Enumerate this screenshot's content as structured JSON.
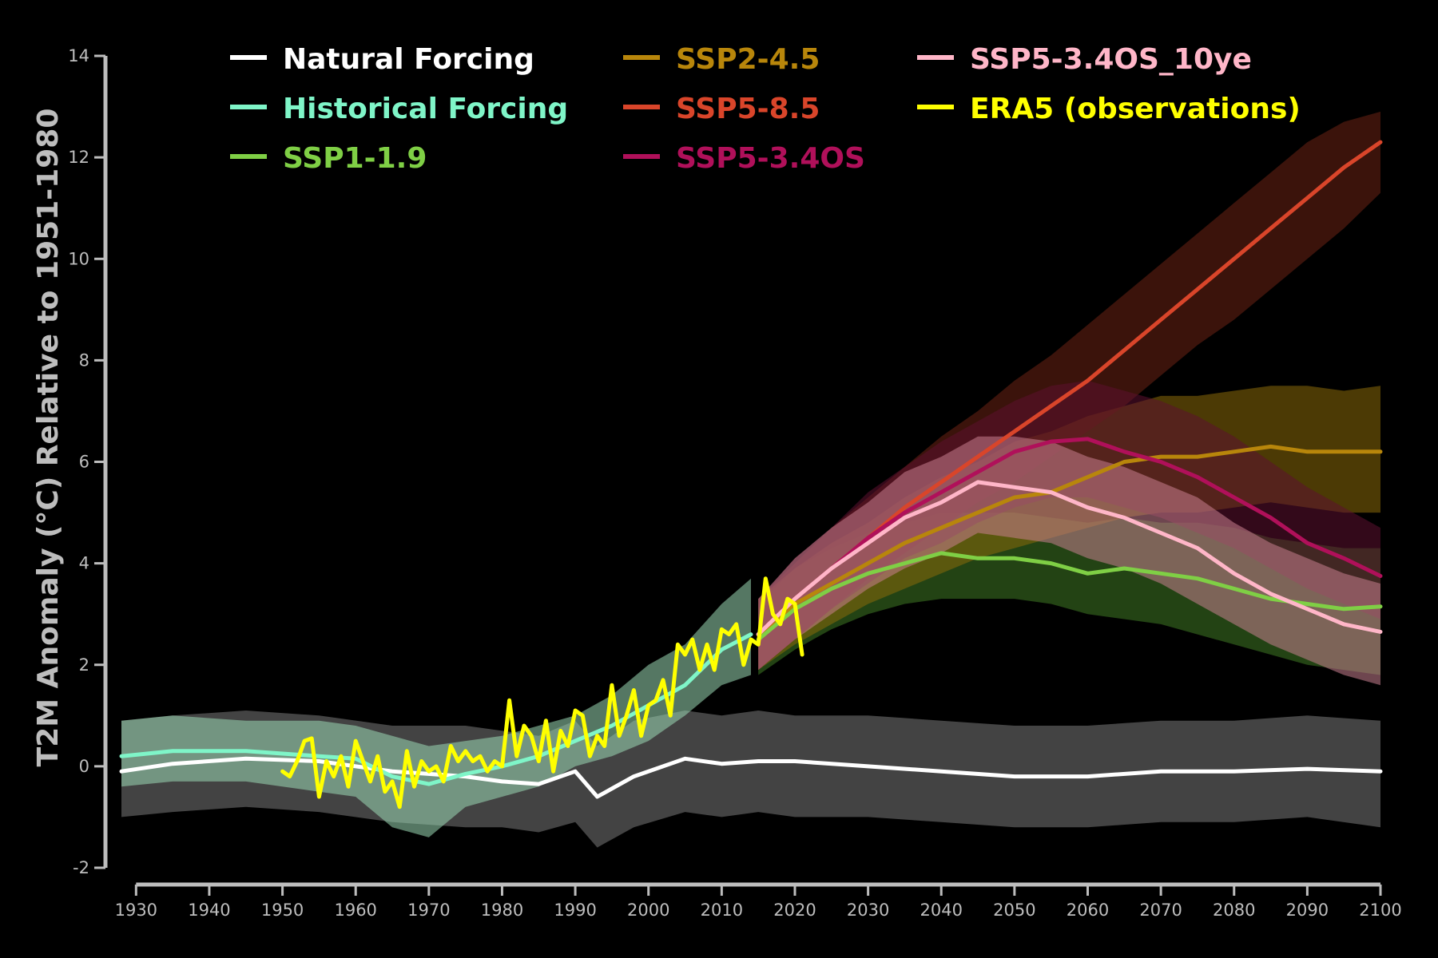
{
  "chart_data": {
    "type": "line",
    "title": "",
    "ylabel": "T2M Anomaly (°C) Relative to 1951-1980",
    "xlabel": "",
    "xlim": [
      1928,
      2100
    ],
    "ylim": [
      -2,
      14
    ],
    "xticks": [
      1930,
      1940,
      1950,
      1960,
      1970,
      1980,
      1990,
      2000,
      2010,
      2020,
      2030,
      2040,
      2050,
      2060,
      2070,
      2080,
      2090,
      2100
    ],
    "yticks": [
      -2,
      0,
      2,
      4,
      6,
      8,
      10,
      12,
      14
    ],
    "grid": false,
    "legend_position": "top",
    "series": [
      {
        "name": "Natural Forcing",
        "color": "#ffffff",
        "band_color": "#7a7a7a",
        "x": [
          1928,
          1935,
          1945,
          1955,
          1965,
          1975,
          1980,
          1985,
          1990,
          1993,
          1998,
          2005,
          2010,
          2015,
          2020,
          2030,
          2040,
          2050,
          2060,
          2070,
          2080,
          2090,
          2100
        ],
        "y": [
          -0.1,
          0.05,
          0.15,
          0.1,
          -0.1,
          -0.2,
          -0.3,
          -0.35,
          -0.1,
          -0.6,
          -0.2,
          0.15,
          0.05,
          0.1,
          0.1,
          0.0,
          -0.1,
          -0.2,
          -0.2,
          -0.1,
          -0.1,
          -0.05,
          -0.1
        ],
        "lower": [
          -1.0,
          -0.9,
          -0.8,
          -0.9,
          -1.1,
          -1.2,
          -1.2,
          -1.3,
          -1.1,
          -1.6,
          -1.2,
          -0.9,
          -1.0,
          -0.9,
          -1.0,
          -1.0,
          -1.1,
          -1.2,
          -1.2,
          -1.1,
          -1.1,
          -1.0,
          -1.2
        ],
        "upper": [
          0.9,
          1.0,
          1.1,
          1.0,
          0.8,
          0.8,
          0.7,
          0.6,
          0.9,
          0.4,
          0.9,
          1.1,
          1.0,
          1.1,
          1.0,
          1.0,
          0.9,
          0.8,
          0.8,
          0.9,
          0.9,
          1.0,
          0.9
        ]
      },
      {
        "name": "Historical Forcing",
        "color": "#7ff5c8",
        "band_color": "#9bd9b5",
        "x": [
          1928,
          1935,
          1945,
          1955,
          1960,
          1965,
          1970,
          1975,
          1980,
          1985,
          1990,
          1995,
          2000,
          2005,
          2010,
          2014
        ],
        "y": [
          0.2,
          0.3,
          0.3,
          0.2,
          0.15,
          -0.2,
          -0.35,
          -0.15,
          0.0,
          0.2,
          0.5,
          0.8,
          1.2,
          1.6,
          2.3,
          2.6
        ],
        "lower": [
          -0.4,
          -0.3,
          -0.3,
          -0.5,
          -0.6,
          -1.2,
          -1.4,
          -0.8,
          -0.6,
          -0.4,
          0.0,
          0.2,
          0.5,
          1.0,
          1.6,
          1.8
        ],
        "upper": [
          0.9,
          1.0,
          0.9,
          0.9,
          0.8,
          0.6,
          0.4,
          0.5,
          0.6,
          0.8,
          1.0,
          1.4,
          2.0,
          2.4,
          3.2,
          3.7
        ]
      },
      {
        "name": "SSP1-1.9",
        "color": "#7fcf45",
        "band_color": "#3f7a25",
        "x": [
          2015,
          2020,
          2025,
          2030,
          2035,
          2040,
          2045,
          2050,
          2055,
          2060,
          2065,
          2070,
          2075,
          2080,
          2085,
          2090,
          2095,
          2100
        ],
        "y": [
          2.5,
          3.1,
          3.5,
          3.8,
          4.0,
          4.2,
          4.1,
          4.1,
          4.0,
          3.8,
          3.9,
          3.8,
          3.7,
          3.5,
          3.3,
          3.2,
          3.1,
          3.15
        ],
        "lower": [
          1.8,
          2.3,
          2.7,
          3.0,
          3.2,
          3.3,
          3.3,
          3.3,
          3.2,
          3.0,
          2.9,
          2.8,
          2.6,
          2.4,
          2.2,
          2.0,
          1.9,
          1.8
        ],
        "upper": [
          3.2,
          3.9,
          4.3,
          4.6,
          4.8,
          5.0,
          5.0,
          5.0,
          4.9,
          4.8,
          4.9,
          4.8,
          4.8,
          4.7,
          4.5,
          4.4,
          4.3,
          4.3
        ]
      },
      {
        "name": "SSP2-4.5",
        "color": "#b8860b",
        "band_color": "#8a6a0a",
        "x": [
          2015,
          2020,
          2025,
          2030,
          2035,
          2040,
          2045,
          2050,
          2055,
          2060,
          2065,
          2070,
          2075,
          2080,
          2085,
          2090,
          2095,
          2100
        ],
        "y": [
          2.6,
          3.2,
          3.6,
          4.0,
          4.4,
          4.7,
          5.0,
          5.3,
          5.4,
          5.7,
          6.0,
          6.1,
          6.1,
          6.2,
          6.3,
          6.2,
          6.2,
          6.2
        ],
        "lower": [
          1.9,
          2.4,
          2.8,
          3.2,
          3.5,
          3.8,
          4.1,
          4.3,
          4.5,
          4.7,
          4.9,
          5.0,
          5.0,
          5.1,
          5.2,
          5.1,
          5.0,
          5.0
        ],
        "upper": [
          3.3,
          3.9,
          4.4,
          4.8,
          5.3,
          5.7,
          6.0,
          6.4,
          6.6,
          6.9,
          7.1,
          7.3,
          7.3,
          7.4,
          7.5,
          7.5,
          7.4,
          7.5
        ]
      },
      {
        "name": "SSP5-8.5",
        "color": "#d9452a",
        "band_color": "#6b2214",
        "x": [
          2015,
          2020,
          2025,
          2030,
          2035,
          2040,
          2045,
          2050,
          2055,
          2060,
          2065,
          2070,
          2075,
          2080,
          2085,
          2090,
          2095,
          2100
        ],
        "y": [
          2.6,
          3.3,
          3.9,
          4.5,
          5.1,
          5.6,
          6.1,
          6.6,
          7.1,
          7.6,
          8.2,
          8.8,
          9.4,
          10.0,
          10.6,
          11.2,
          11.8,
          12.3
        ],
        "lower": [
          1.9,
          2.5,
          3.1,
          3.7,
          4.2,
          4.7,
          5.2,
          5.6,
          6.1,
          6.6,
          7.1,
          7.7,
          8.3,
          8.8,
          9.4,
          10.0,
          10.6,
          11.3
        ],
        "upper": [
          3.3,
          4.0,
          4.7,
          5.3,
          5.9,
          6.5,
          7.0,
          7.6,
          8.1,
          8.7,
          9.3,
          9.9,
          10.5,
          11.1,
          11.7,
          12.3,
          12.7,
          12.9
        ]
      },
      {
        "name": "SSP5-3.4OS",
        "color": "#b0105a",
        "band_color": "#5c1030",
        "x": [
          2015,
          2020,
          2025,
          2030,
          2035,
          2040,
          2045,
          2050,
          2055,
          2060,
          2065,
          2070,
          2075,
          2080,
          2085,
          2090,
          2095,
          2100
        ],
        "y": [
          2.6,
          3.3,
          3.9,
          4.5,
          5.0,
          5.4,
          5.8,
          6.2,
          6.4,
          6.45,
          6.2,
          6.0,
          5.7,
          5.3,
          4.9,
          4.4,
          4.1,
          3.75
        ],
        "lower": [
          1.9,
          2.5,
          3.1,
          3.6,
          4.1,
          4.4,
          4.8,
          5.1,
          5.3,
          5.3,
          5.1,
          4.9,
          4.6,
          4.3,
          3.9,
          3.5,
          3.2,
          2.9
        ],
        "upper": [
          3.3,
          4.1,
          4.7,
          5.4,
          5.9,
          6.4,
          6.8,
          7.2,
          7.5,
          7.6,
          7.4,
          7.2,
          6.9,
          6.5,
          6.0,
          5.5,
          5.1,
          4.7
        ]
      },
      {
        "name": "SSP5-3.4OS_10ye",
        "color": "#ffb6c8",
        "band_color": "#c9808f",
        "x": [
          2015,
          2020,
          2025,
          2030,
          2035,
          2040,
          2045,
          2050,
          2055,
          2060,
          2065,
          2070,
          2075,
          2080,
          2085,
          2090,
          2095,
          2100
        ],
        "y": [
          2.6,
          3.3,
          3.9,
          4.4,
          4.9,
          5.2,
          5.6,
          5.5,
          5.4,
          5.1,
          4.9,
          4.6,
          4.3,
          3.8,
          3.4,
          3.1,
          2.8,
          2.65
        ],
        "lower": [
          1.9,
          2.5,
          3.0,
          3.5,
          3.9,
          4.2,
          4.6,
          4.5,
          4.4,
          4.1,
          3.9,
          3.6,
          3.2,
          2.8,
          2.4,
          2.1,
          1.8,
          1.6
        ],
        "upper": [
          3.3,
          4.1,
          4.7,
          5.2,
          5.8,
          6.1,
          6.5,
          6.5,
          6.4,
          6.1,
          5.9,
          5.6,
          5.3,
          4.8,
          4.4,
          4.1,
          3.8,
          3.6
        ]
      },
      {
        "name": "ERA5 (observations)",
        "color": "#ffff00",
        "x": [
          1950,
          1951,
          1952,
          1953,
          1954,
          1955,
          1956,
          1957,
          1958,
          1959,
          1960,
          1961,
          1962,
          1963,
          1964,
          1965,
          1966,
          1967,
          1968,
          1969,
          1970,
          1971,
          1972,
          1973,
          1974,
          1975,
          1976,
          1977,
          1978,
          1979,
          1980,
          1981,
          1982,
          1983,
          1984,
          1985,
          1986,
          1987,
          1988,
          1989,
          1990,
          1991,
          1992,
          1993,
          1994,
          1995,
          1996,
          1997,
          1998,
          1999,
          2000,
          2001,
          2002,
          2003,
          2004,
          2005,
          2006,
          2007,
          2008,
          2009,
          2010,
          2011,
          2012,
          2013,
          2014,
          2015,
          2016,
          2017,
          2018,
          2019,
          2020,
          2021
        ],
        "y": [
          -0.1,
          -0.2,
          0.1,
          0.5,
          0.55,
          -0.6,
          0.1,
          -0.2,
          0.2,
          -0.4,
          0.5,
          0.1,
          -0.3,
          0.2,
          -0.5,
          -0.3,
          -0.8,
          0.3,
          -0.4,
          0.1,
          -0.1,
          0.0,
          -0.3,
          0.4,
          0.1,
          0.3,
          0.1,
          0.2,
          -0.1,
          0.1,
          0.0,
          1.3,
          0.2,
          0.8,
          0.6,
          0.1,
          0.9,
          -0.1,
          0.7,
          0.4,
          1.1,
          1.0,
          0.2,
          0.6,
          0.4,
          1.6,
          0.6,
          1.0,
          1.5,
          0.6,
          1.2,
          1.3,
          1.7,
          1.0,
          2.4,
          2.2,
          2.5,
          1.9,
          2.4,
          1.9,
          2.7,
          2.6,
          2.8,
          2.0,
          2.5,
          2.4,
          3.7,
          3.0,
          2.8,
          3.3,
          3.2,
          2.2
        ]
      }
    ]
  }
}
